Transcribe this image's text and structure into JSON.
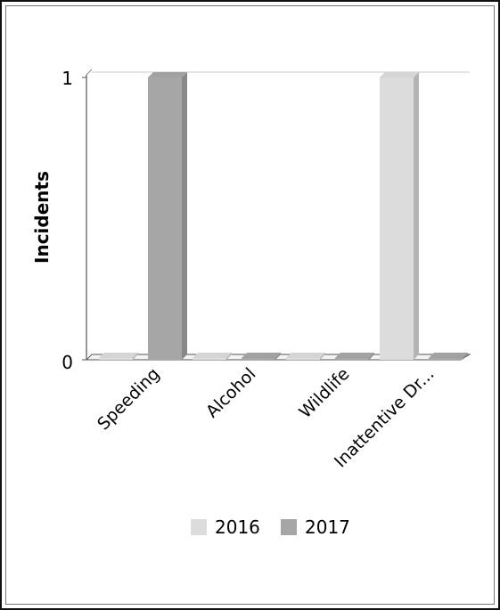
{
  "chart_data": {
    "type": "bar",
    "categories": [
      "Speeding",
      "Alcohol",
      "Wildlife",
      "Inattentive Dr..."
    ],
    "series": [
      {
        "name": "2016",
        "values": [
          0,
          0,
          0,
          1
        ],
        "color": "#dcdcdc"
      },
      {
        "name": "2017",
        "values": [
          1,
          0,
          0,
          0
        ],
        "color": "#a6a6a6"
      }
    ],
    "ylabel": "Incidents",
    "yticks": [
      "0",
      "1"
    ],
    "ylim": [
      0,
      1
    ],
    "legend_position": "bottom",
    "grid": true
  }
}
